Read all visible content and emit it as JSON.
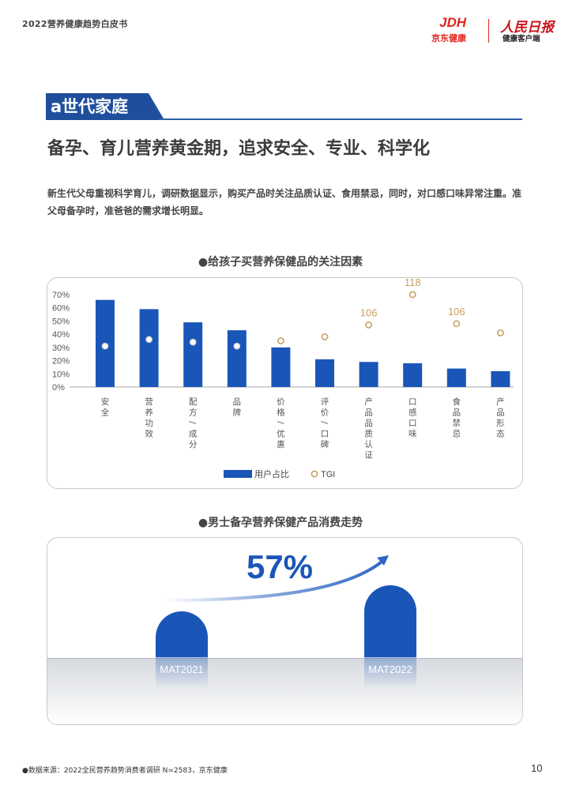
{
  "header": {
    "report_title": "2022营养健康趋势白皮书",
    "logo_jdh": "JDH",
    "logo_jdh_sub": "京东健康",
    "logo_rmrb": "人民日报",
    "logo_rmrb_sub": "健康客户端"
  },
  "section": {
    "banner": "a世代家庭",
    "headline": "备孕、育儿营养黄金期，追求安全、专业、科学化",
    "intro": "新生代父母重视科学育儿，调研数据显示，购买产品时关注品质认证、食用禁忌，同时，对口感口味异常注重。准父母备孕时，准爸爸的需求增长明显。"
  },
  "colors": {
    "bar": "#1a56b8",
    "tgi": "#c9a060",
    "accent": "#2f5fa8"
  },
  "chart_titles": {
    "chart1": "●给孩子买营养保健品的关注因素",
    "chart2": "●男士备孕营养保健产品消费走势"
  },
  "chart_data": [
    {
      "type": "bar",
      "categories": [
        "安全",
        "营养功效",
        "配方/成分",
        "品牌",
        "价格/优惠",
        "评价/口碑",
        "产品品质认证",
        "口感口味",
        "食品禁忌",
        "产品形态"
      ],
      "series": [
        {
          "name": "用户占比",
          "values": [
            66,
            59,
            49,
            43,
            30,
            21,
            19,
            18,
            14,
            12
          ]
        },
        {
          "name": "TGI",
          "values": [
            null,
            null,
            null,
            null,
            null,
            null,
            106,
            118,
            106,
            null
          ]
        }
      ],
      "tgi_markers_y": [
        31,
        36,
        34,
        31,
        35,
        38,
        47,
        70,
        48,
        41
      ],
      "tgi_labels": [
        "",
        "",
        "",
        "",
        "",
        "",
        "106",
        "118",
        "106",
        ""
      ],
      "yticks": [
        "0%",
        "10%",
        "20%",
        "30%",
        "40%",
        "50%",
        "60%",
        "70%"
      ],
      "ylim": [
        0,
        70
      ],
      "legend": [
        "用户占比",
        "TGI"
      ]
    },
    {
      "type": "bar",
      "categories": [
        "MAT2021",
        "MAT2022"
      ],
      "values": [
        1,
        1.57
      ],
      "growth_label": "57%"
    }
  ],
  "footer": {
    "note": "●数据来源：2022全民营养趋势消费者调研 N=2583，京东健康",
    "page": "10"
  }
}
